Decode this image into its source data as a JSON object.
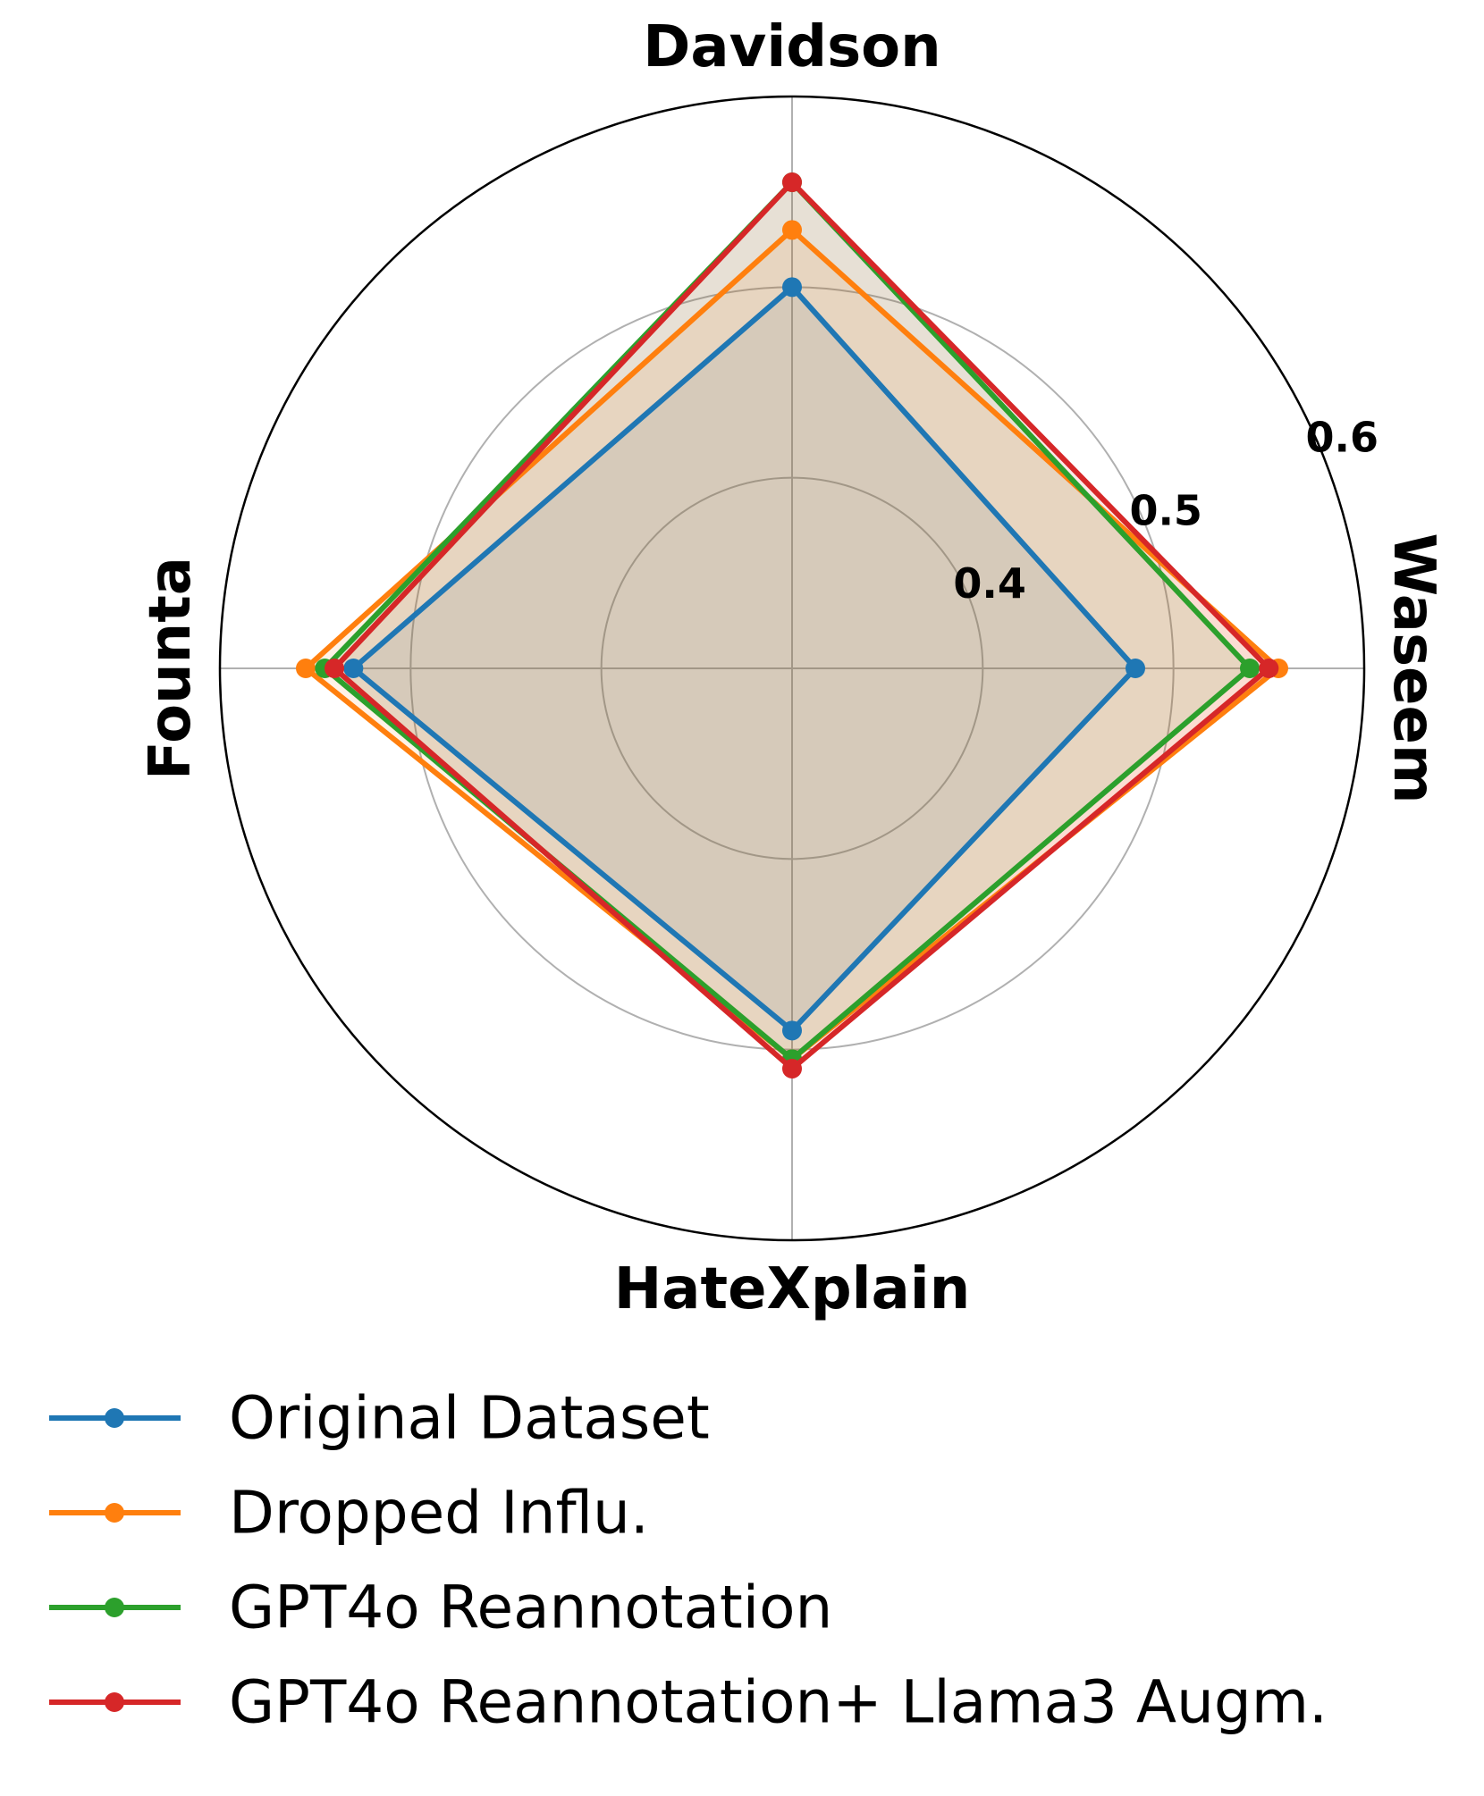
{
  "chart_data": {
    "type": "radar",
    "axes": [
      "Davidson",
      "Waseem",
      "HateXplain",
      "Founta"
    ],
    "rticks": [
      0.4,
      0.5,
      0.6
    ],
    "rlim": [
      0.3,
      0.6
    ],
    "grid": true,
    "legend_position": "bottom",
    "series": [
      {
        "name": "Original Dataset",
        "color": "#1f77b4",
        "values": [
          0.5,
          0.48,
          0.49,
          0.53
        ]
      },
      {
        "name": "Dropped Influ.",
        "color": "#ff7f0e",
        "values": [
          0.53,
          0.555,
          0.505,
          0.555
        ]
      },
      {
        "name": "GPT4o Reannotation",
        "color": "#2ca02c",
        "values": [
          0.555,
          0.54,
          0.505,
          0.545
        ]
      },
      {
        "name": "GPT4o Reannotation+ Llama3 Augm.",
        "color": "#d62728",
        "values": [
          0.555,
          0.55,
          0.51,
          0.54
        ]
      }
    ]
  }
}
